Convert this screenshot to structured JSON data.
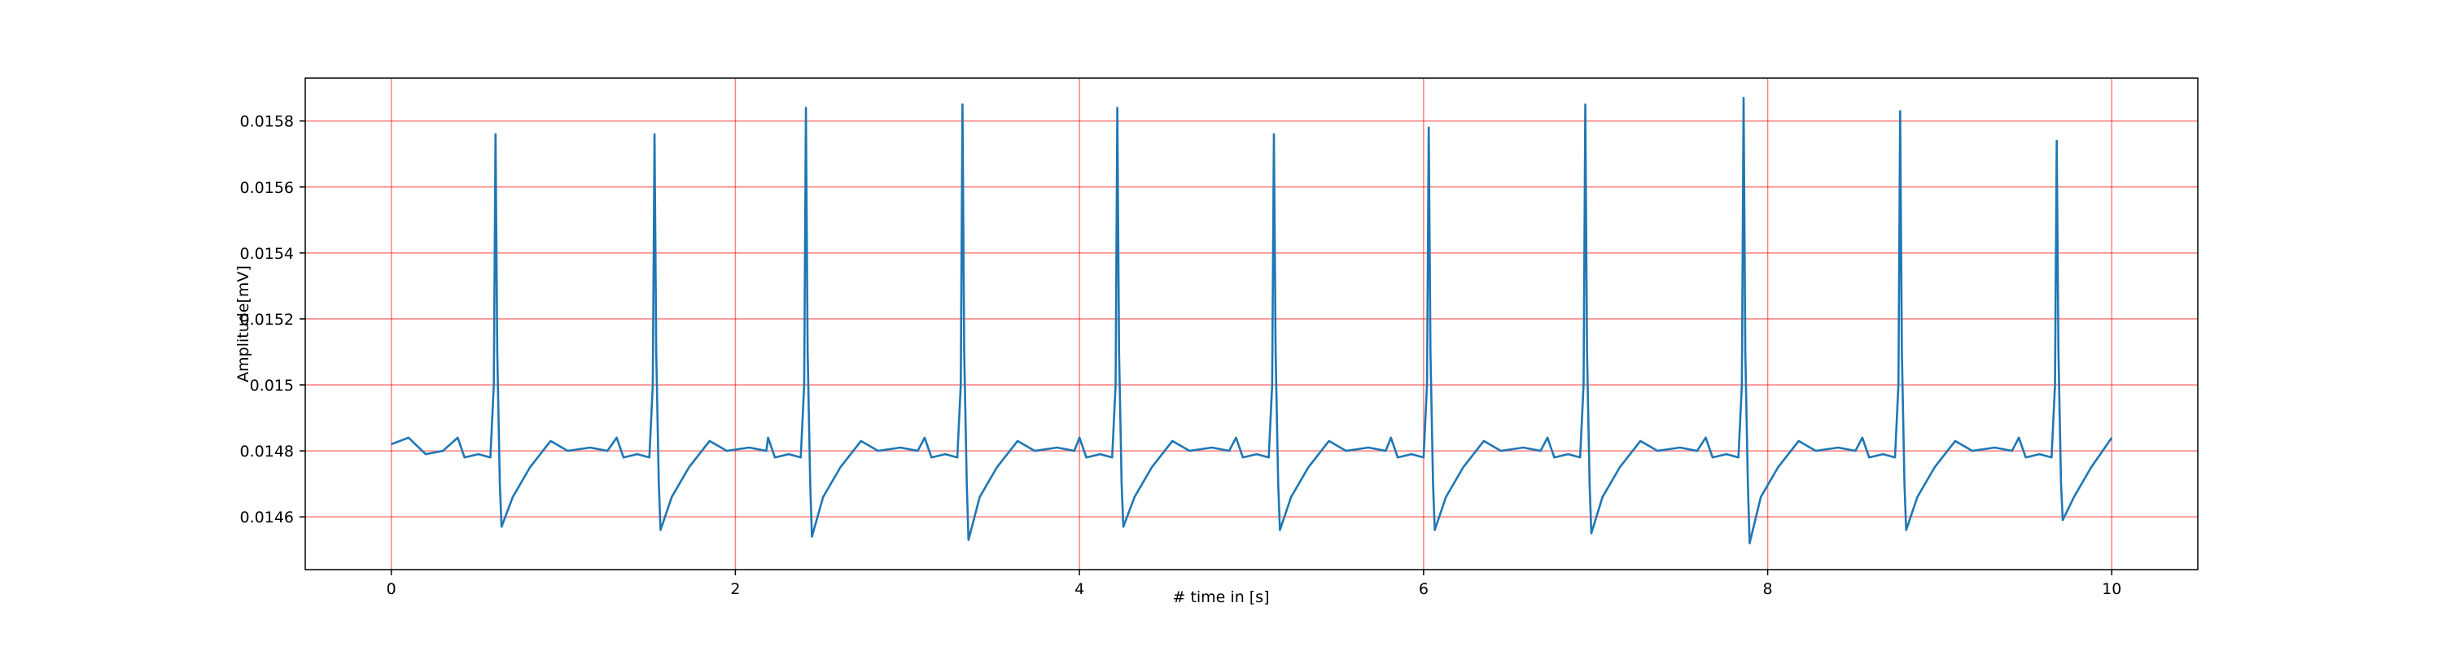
{
  "chart_data": {
    "type": "line",
    "xlabel": "# time in [s]",
    "ylabel": "Amplitude[mV]",
    "xlim": [
      -0.5,
      10.5
    ],
    "ylim": [
      0.01444,
      0.01593
    ],
    "xticks": [
      0,
      2,
      4,
      6,
      8,
      10
    ],
    "yticks": [
      0.0146,
      0.0148,
      0.015,
      0.0152,
      0.0154,
      0.0156,
      0.0158
    ],
    "grid": true,
    "grid_color": "#ff0000",
    "x": [
      0,
      0.1,
      0.2,
      0.3,
      0.386,
      0.426,
      0.506,
      0.576,
      0.596,
      0.606,
      0.616,
      0.631,
      0.641,
      0.706,
      0.806,
      0.926,
      1.026,
      1.156,
      1.256,
      1.31,
      1.35,
      1.43,
      1.5,
      1.52,
      1.53,
      1.54,
      1.555,
      1.565,
      1.63,
      1.73,
      1.85,
      1.95,
      2.08,
      2.18,
      2.19,
      2.23,
      2.31,
      2.38,
      2.4,
      2.41,
      2.42,
      2.435,
      2.445,
      2.51,
      2.61,
      2.73,
      2.83,
      2.96,
      3.06,
      3.1,
      3.14,
      3.22,
      3.29,
      3.31,
      3.32,
      3.33,
      3.345,
      3.355,
      3.42,
      3.52,
      3.64,
      3.74,
      3.87,
      3.97,
      4.0,
      4.04,
      4.12,
      4.19,
      4.21,
      4.22,
      4.23,
      4.245,
      4.255,
      4.32,
      4.42,
      4.54,
      4.64,
      4.77,
      4.87,
      4.91,
      4.95,
      5.03,
      5.1,
      5.12,
      5.13,
      5.14,
      5.155,
      5.165,
      5.23,
      5.33,
      5.45,
      5.55,
      5.68,
      5.78,
      5.81,
      5.85,
      5.93,
      6.0,
      6.02,
      6.03,
      6.04,
      6.055,
      6.065,
      6.13,
      6.23,
      6.35,
      6.45,
      6.58,
      6.68,
      6.72,
      6.76,
      6.84,
      6.91,
      6.93,
      6.94,
      6.95,
      6.965,
      6.975,
      7.04,
      7.14,
      7.26,
      7.36,
      7.49,
      7.59,
      7.64,
      7.68,
      7.76,
      7.83,
      7.85,
      7.86,
      7.87,
      7.885,
      7.895,
      7.96,
      8.06,
      8.18,
      8.28,
      8.41,
      8.51,
      8.55,
      8.59,
      8.67,
      8.74,
      8.76,
      8.77,
      8.78,
      8.795,
      8.805,
      8.87,
      8.97,
      9.09,
      9.19,
      9.32,
      9.42,
      9.46,
      9.5,
      9.58,
      9.65,
      9.67,
      9.68,
      9.69,
      9.705,
      9.715,
      9.78,
      9.88,
      10.0
    ],
    "series": [
      {
        "name": "Amplitude",
        "color": "#1f77b4",
        "values": [
          0.01482,
          0.01484,
          0.01479,
          0.0148,
          0.01484,
          0.01478,
          0.01479,
          0.01478,
          0.015,
          0.01576,
          0.0151,
          0.0147,
          0.01457,
          0.01466,
          0.01475,
          0.01483,
          0.0148,
          0.01481,
          0.0148,
          0.01484,
          0.01478,
          0.01479,
          0.01478,
          0.015,
          0.01576,
          0.0151,
          0.0147,
          0.01456,
          0.01466,
          0.01475,
          0.01483,
          0.0148,
          0.01481,
          0.0148,
          0.01484,
          0.01478,
          0.01479,
          0.01478,
          0.015,
          0.01584,
          0.0151,
          0.0147,
          0.01454,
          0.01466,
          0.01475,
          0.01483,
          0.0148,
          0.01481,
          0.0148,
          0.01484,
          0.01478,
          0.01479,
          0.01478,
          0.015,
          0.01585,
          0.0151,
          0.0147,
          0.01453,
          0.01466,
          0.01475,
          0.01483,
          0.0148,
          0.01481,
          0.0148,
          0.01484,
          0.01478,
          0.01479,
          0.01478,
          0.015,
          0.01584,
          0.0151,
          0.0147,
          0.01457,
          0.01466,
          0.01475,
          0.01483,
          0.0148,
          0.01481,
          0.0148,
          0.01484,
          0.01478,
          0.01479,
          0.01478,
          0.015,
          0.01576,
          0.0151,
          0.0147,
          0.01456,
          0.01466,
          0.01475,
          0.01483,
          0.0148,
          0.01481,
          0.0148,
          0.01484,
          0.01478,
          0.01479,
          0.01478,
          0.015,
          0.01578,
          0.0151,
          0.0147,
          0.01456,
          0.01466,
          0.01475,
          0.01483,
          0.0148,
          0.01481,
          0.0148,
          0.01484,
          0.01478,
          0.01479,
          0.01478,
          0.015,
          0.01585,
          0.0151,
          0.0147,
          0.01455,
          0.01466,
          0.01475,
          0.01483,
          0.0148,
          0.01481,
          0.0148,
          0.01484,
          0.01478,
          0.01479,
          0.01478,
          0.015,
          0.01587,
          0.0151,
          0.0147,
          0.01452,
          0.01466,
          0.01475,
          0.01483,
          0.0148,
          0.01481,
          0.0148,
          0.01484,
          0.01478,
          0.01479,
          0.01478,
          0.015,
          0.01583,
          0.0151,
          0.0147,
          0.01456,
          0.01466,
          0.01475,
          0.01483,
          0.0148,
          0.01481,
          0.0148,
          0.01484,
          0.01478,
          0.01479,
          0.01478,
          0.015,
          0.01574,
          0.0151,
          0.0147,
          0.01459,
          0.01466,
          0.01475,
          0.01484
        ]
      }
    ]
  }
}
